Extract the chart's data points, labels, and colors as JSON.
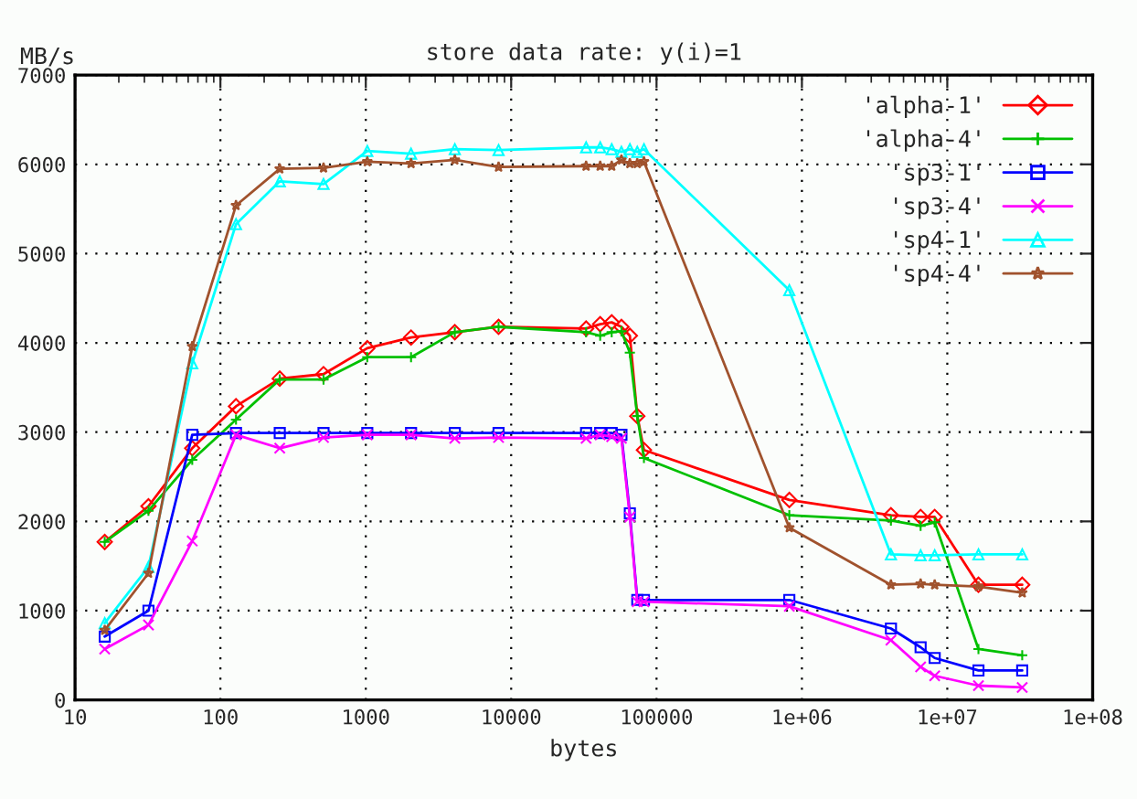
{
  "chart_data": {
    "type": "line",
    "title": "store data rate: y(i)=1",
    "xlabel": "bytes",
    "ylabel": "MB/s",
    "x": [
      16,
      32,
      64,
      128,
      256,
      512,
      1024,
      2048,
      4096,
      8192,
      32768,
      40960,
      49152,
      57344,
      65536,
      73728,
      81920,
      819200,
      4096000,
      6553600,
      8192000,
      16384000,
      32768000
    ],
    "log": "x",
    "xlim": [
      10,
      100000000
    ],
    "ylim": [
      0,
      7000
    ],
    "xticks": [
      10,
      100,
      1000,
      10000,
      100000,
      {
        "value": 1000000,
        "label": "1e+06"
      },
      {
        "value": 10000000,
        "label": "1e+07"
      },
      {
        "value": 100000000,
        "label": "1e+08"
      }
    ],
    "yticks": [
      0,
      1000,
      2000,
      3000,
      4000,
      5000,
      6000,
      7000
    ],
    "grid": true,
    "legend": "top right",
    "series": [
      {
        "name": "'alpha-1'",
        "color": "#ff0000",
        "marker": "diamond",
        "values": [
          1770,
          2170,
          2820,
          3290,
          3600,
          3650,
          3940,
          4060,
          4120,
          4180,
          4160,
          4210,
          4230,
          4180,
          4080,
          3180,
          2800,
          2240,
          2070,
          2050,
          2050,
          1290,
          1290
        ]
      },
      {
        "name": "'alpha-4'",
        "color": "#00c000",
        "marker": "cross",
        "values": [
          1770,
          2120,
          2690,
          3140,
          3590,
          3590,
          3840,
          3840,
          4120,
          4180,
          4120,
          4080,
          4120,
          4130,
          3890,
          3180,
          2710,
          2070,
          2010,
          1950,
          1990,
          570,
          500
        ]
      },
      {
        "name": "'sp3-1'",
        "color": "#0000ff",
        "marker": "square",
        "values": [
          710,
          1000,
          2970,
          2990,
          2990,
          2990,
          2990,
          2990,
          2990,
          2990,
          2990,
          2990,
          2990,
          2970,
          2090,
          1120,
          1120,
          1120,
          800,
          590,
          470,
          330,
          330
        ]
      },
      {
        "name": "'sp3-4'",
        "color": "#ff00ff",
        "marker": "x",
        "values": [
          570,
          840,
          1780,
          2970,
          2820,
          2940,
          2970,
          2970,
          2930,
          2940,
          2930,
          2970,
          2950,
          2930,
          2050,
          1100,
          1100,
          1050,
          670,
          370,
          270,
          160,
          140
        ]
      },
      {
        "name": "'sp4-1'",
        "color": "#00ffff",
        "marker": "triangle",
        "values": [
          860,
          1490,
          3770,
          5330,
          5810,
          5780,
          6150,
          6120,
          6170,
          6160,
          6190,
          6190,
          6170,
          6140,
          6170,
          6140,
          6170,
          4590,
          1630,
          1620,
          1620,
          1630,
          1630
        ]
      },
      {
        "name": "'sp4-4'",
        "color": "#a0522d",
        "marker": "star",
        "values": [
          780,
          1420,
          3960,
          5540,
          5950,
          5960,
          6030,
          6010,
          6050,
          5970,
          5980,
          5980,
          5980,
          6050,
          6010,
          6010,
          6030,
          1930,
          1290,
          1300,
          1290,
          1270,
          1200
        ]
      }
    ]
  }
}
